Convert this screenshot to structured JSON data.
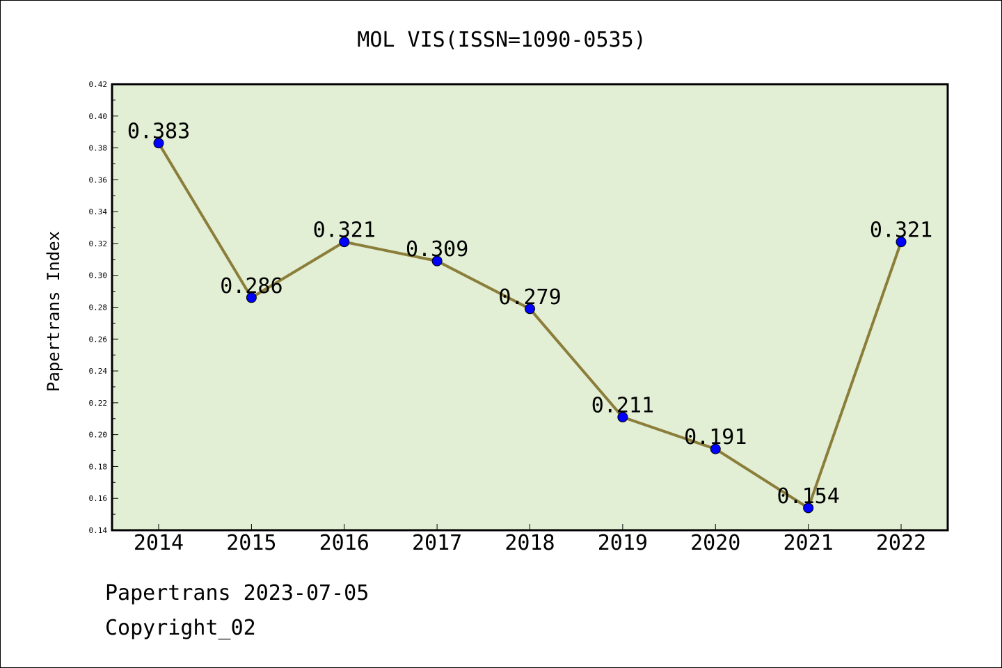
{
  "chart_data": {
    "type": "line",
    "title": "MOL VIS(ISSN=1090-0535)",
    "xlabel": "",
    "ylabel": "Papertrans Index",
    "categories": [
      "2014",
      "2015",
      "2016",
      "2017",
      "2018",
      "2019",
      "2020",
      "2021",
      "2022"
    ],
    "series": [
      {
        "values": [
          0.383,
          0.286,
          0.321,
          0.309,
          0.279,
          0.211,
          0.191,
          0.154,
          0.321
        ]
      }
    ],
    "data_labels": [
      "0.383",
      "0.286",
      "0.321",
      "0.309",
      "0.279",
      "0.211",
      "0.191",
      "0.154",
      "0.321"
    ],
    "ylim": [
      0.14,
      0.42
    ],
    "yticks": [
      "0.14",
      "0.16",
      "0.18",
      "0.20",
      "0.22",
      "0.24",
      "0.26",
      "0.28",
      "0.30",
      "0.32",
      "0.34",
      "0.36",
      "0.38",
      "0.40",
      "0.42"
    ],
    "grid": false,
    "legend": "none",
    "colors": {
      "plot_background": "#e2efd4",
      "line": "#8b7d3a",
      "marker": "#0000ff"
    }
  },
  "footer": {
    "line1": "Papertrans 2023-07-05",
    "line2": "Copyright_02"
  }
}
